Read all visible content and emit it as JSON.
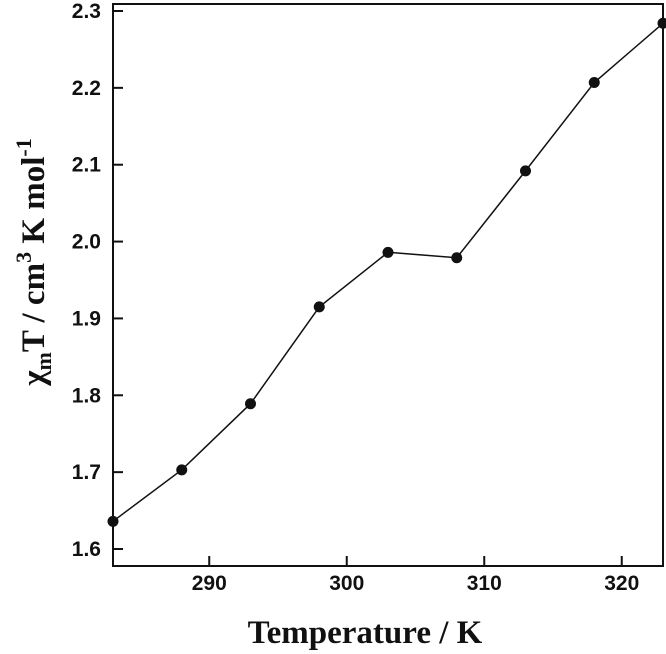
{
  "chart_data": {
    "type": "line",
    "xlabel": "Temperature / K",
    "ylabel": {
      "chi": "χ",
      "sub": "m",
      "mid": "T / cm",
      "sup3": "3",
      "end": " K mol",
      "supneg1": "-1"
    },
    "xlim": [
      283,
      323
    ],
    "ylim": [
      1.6,
      2.3
    ],
    "xticks": [
      290,
      300,
      310,
      320
    ],
    "yticks": [
      1.6,
      1.7,
      1.8,
      1.9,
      2.0,
      2.1,
      2.2,
      2.3
    ],
    "ytick_labels": [
      "1.6",
      "1.7",
      "1.8",
      "1.9",
      "2.0",
      "2.1",
      "2.2",
      "2.3"
    ],
    "series": [
      {
        "x": [
          283,
          288,
          293,
          298,
          303,
          308,
          313,
          318,
          323
        ],
        "y": [
          1.636,
          1.703,
          1.789,
          1.915,
          1.986,
          1.979,
          2.092,
          2.207,
          2.284
        ]
      }
    ],
    "grid": false,
    "colors": {
      "line": "#111111",
      "marker": "#111111"
    }
  }
}
